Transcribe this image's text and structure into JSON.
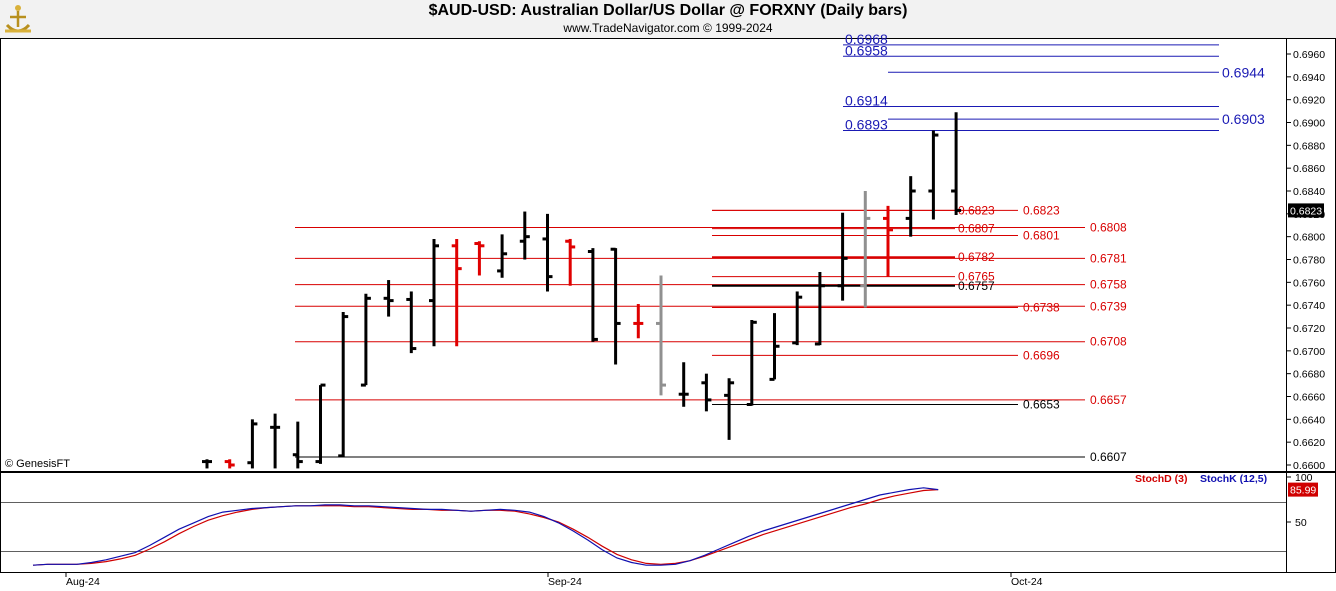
{
  "header": {
    "title": "$AUD-USD:  Australian Dollar/US Dollar @ FORXNY  (Daily bars)",
    "subtitle": "www.TradeNavigator.com © 1999-2024"
  },
  "colors": {
    "up_bar": "#000000",
    "down_bar": "#e00000",
    "gray_bar": "#909090",
    "fib_upper": "#1a1ab4",
    "fib_red": "#d80000",
    "stoch_d": "#d00000",
    "stoch_k": "#1010b0",
    "price_badge_bg": "#000000",
    "stoch_badge_bg": "#d00000"
  },
  "chart_data": [
    {
      "type": "ohlc",
      "symbol": "$AUD-USD",
      "interval": "Daily bars",
      "watermark": "© GenesisFT",
      "x_ticks": [
        "Aug-24",
        "Sep-24",
        "Oct-24"
      ],
      "y_ticks": [
        "0.6960",
        "0.6940",
        "0.6920",
        "0.6900",
        "0.6880",
        "0.6860",
        "0.6840",
        "0.6820",
        "0.6800",
        "0.6780",
        "0.6760",
        "0.6740",
        "0.6720",
        "0.6700",
        "0.6680",
        "0.6660",
        "0.6640",
        "0.6620",
        "0.6600"
      ],
      "ylim": [
        0.6597,
        0.6975
      ],
      "last_price_label": "0.6823",
      "bars": [
        {
          "o": 0.6603,
          "h": 0.6605,
          "l": 0.6597,
          "c": 0.6603,
          "col": "up"
        },
        {
          "o": 0.6603,
          "h": 0.6605,
          "l": 0.6597,
          "c": 0.66,
          "col": "down"
        },
        {
          "o": 0.6602,
          "h": 0.664,
          "l": 0.6597,
          "c": 0.6636,
          "col": "up"
        },
        {
          "o": 0.6633,
          "h": 0.6645,
          "l": 0.6597,
          "c": 0.6633,
          "col": "up"
        },
        {
          "o": 0.6609,
          "h": 0.6638,
          "l": 0.6597,
          "c": 0.6603,
          "col": "up"
        },
        {
          "o": 0.6603,
          "h": 0.667,
          "l": 0.6601,
          "c": 0.667,
          "col": "up"
        },
        {
          "o": 0.6608,
          "h": 0.6734,
          "l": 0.6607,
          "c": 0.673,
          "col": "up"
        },
        {
          "o": 0.667,
          "h": 0.675,
          "l": 0.667,
          "c": 0.6746,
          "col": "up"
        },
        {
          "o": 0.6746,
          "h": 0.6762,
          "l": 0.673,
          "c": 0.6744,
          "col": "up"
        },
        {
          "o": 0.6745,
          "h": 0.6752,
          "l": 0.6698,
          "c": 0.6702,
          "col": "up"
        },
        {
          "o": 0.6744,
          "h": 0.6798,
          "l": 0.6704,
          "c": 0.6792,
          "col": "up"
        },
        {
          "o": 0.6792,
          "h": 0.6798,
          "l": 0.6704,
          "c": 0.6772,
          "col": "down"
        },
        {
          "o": 0.6794,
          "h": 0.6796,
          "l": 0.6766,
          "c": 0.6792,
          "col": "down"
        },
        {
          "o": 0.677,
          "h": 0.6802,
          "l": 0.6764,
          "c": 0.6785,
          "col": "up"
        },
        {
          "o": 0.6796,
          "h": 0.6822,
          "l": 0.678,
          "c": 0.68,
          "col": "up"
        },
        {
          "o": 0.6798,
          "h": 0.682,
          "l": 0.6752,
          "c": 0.6765,
          "col": "up"
        },
        {
          "o": 0.6796,
          "h": 0.6798,
          "l": 0.6757,
          "c": 0.6791,
          "col": "down"
        },
        {
          "o": 0.6787,
          "h": 0.679,
          "l": 0.6708,
          "c": 0.671,
          "col": "up"
        },
        {
          "o": 0.6789,
          "h": 0.679,
          "l": 0.6688,
          "c": 0.6724,
          "col": "up"
        },
        {
          "o": 0.6724,
          "h": 0.6741,
          "l": 0.6711,
          "c": 0.6724,
          "col": "down"
        },
        {
          "o": 0.6724,
          "h": 0.6766,
          "l": 0.6661,
          "c": 0.667,
          "col": "gray"
        },
        {
          "o": 0.6662,
          "h": 0.669,
          "l": 0.6651,
          "c": 0.6662,
          "col": "up"
        },
        {
          "o": 0.6672,
          "h": 0.668,
          "l": 0.6647,
          "c": 0.6657,
          "col": "up"
        },
        {
          "o": 0.6661,
          "h": 0.6676,
          "l": 0.6622,
          "c": 0.6672,
          "col": "up"
        },
        {
          "o": 0.6653,
          "h": 0.6727,
          "l": 0.6652,
          "c": 0.6725,
          "col": "up"
        },
        {
          "o": 0.6675,
          "h": 0.6733,
          "l": 0.6675,
          "c": 0.6704,
          "col": "up"
        },
        {
          "o": 0.6707,
          "h": 0.6752,
          "l": 0.6705,
          "c": 0.6747,
          "col": "up"
        },
        {
          "o": 0.6706,
          "h": 0.6769,
          "l": 0.6705,
          "c": 0.6757,
          "col": "up"
        },
        {
          "o": 0.6757,
          "h": 0.6821,
          "l": 0.6744,
          "c": 0.6781,
          "col": "up"
        },
        {
          "o": 0.6757,
          "h": 0.684,
          "l": 0.6738,
          "c": 0.6816,
          "col": "gray"
        },
        {
          "o": 0.6816,
          "h": 0.6827,
          "l": 0.6765,
          "c": 0.6806,
          "col": "down"
        },
        {
          "o": 0.6816,
          "h": 0.6853,
          "l": 0.68,
          "c": 0.684,
          "col": "up"
        },
        {
          "o": 0.684,
          "h": 0.6893,
          "l": 0.6815,
          "c": 0.6889,
          "col": "up"
        },
        {
          "o": 0.684,
          "h": 0.6909,
          "l": 0.6819,
          "c": 0.6823,
          "col": "up"
        }
      ],
      "levels_blue": [
        {
          "value": 0.6968,
          "label": "0.6968",
          "side": "left"
        },
        {
          "value": 0.6958,
          "label": "0.6958",
          "side": "left"
        },
        {
          "value": 0.6944,
          "label": "0.6944",
          "side": "right"
        },
        {
          "value": 0.6914,
          "label": "0.6914",
          "side": "left"
        },
        {
          "value": 0.6903,
          "label": "0.6903",
          "side": "right"
        },
        {
          "value": 0.6893,
          "label": "0.6893",
          "side": "left"
        }
      ],
      "levels_red_long": [
        {
          "value": 0.6808,
          "label": "0.6808"
        },
        {
          "value": 0.6781,
          "label": "0.6781"
        },
        {
          "value": 0.6758,
          "label": "0.6758"
        },
        {
          "value": 0.6739,
          "label": "0.6739"
        },
        {
          "value": 0.6708,
          "label": "0.6708"
        },
        {
          "value": 0.6657,
          "label": "0.6657"
        }
      ],
      "levels_black_long": [
        {
          "value": 0.6607,
          "label": "0.6607"
        }
      ],
      "levels_red_mid": [
        {
          "value": 0.6823,
          "label": "0.6823"
        },
        {
          "value": 0.6801,
          "label": "0.6801"
        },
        {
          "value": 0.6738,
          "label": "0.6738"
        },
        {
          "value": 0.6696,
          "label": "0.6696"
        }
      ],
      "levels_black_mid": [
        {
          "value": 0.6653,
          "label": "0.6653"
        }
      ],
      "levels_short": [
        {
          "value": 0.6823,
          "label": "0.6823",
          "col": "red"
        },
        {
          "value": 0.6807,
          "label": "0.6807",
          "col": "red"
        },
        {
          "value": 0.6782,
          "label": "0.6782",
          "col": "red"
        },
        {
          "value": 0.6765,
          "label": "0.6765",
          "col": "red"
        },
        {
          "value": 0.6757,
          "label": "0.6757",
          "col": "black"
        }
      ]
    },
    {
      "type": "line",
      "indicator": "Stochastic",
      "y_ticks": [
        "100",
        "50"
      ],
      "ylim": [
        0,
        100
      ],
      "last_value_label": "85.99",
      "series": [
        {
          "name": "StochD (3)",
          "values": [
            2,
            3,
            3,
            3,
            4,
            6,
            9,
            13,
            20,
            28,
            37,
            45,
            52,
            57,
            61,
            64,
            66,
            67,
            68,
            68,
            68,
            68,
            67,
            67,
            66,
            65,
            64,
            64,
            63,
            63,
            62,
            63,
            63,
            62,
            59,
            55,
            50,
            42,
            33,
            23,
            14,
            8,
            4,
            3,
            4,
            7,
            12,
            18,
            24,
            30,
            36,
            41,
            46,
            51,
            56,
            61,
            66,
            70,
            75,
            79,
            82,
            85,
            86
          ]
        },
        {
          "name": "StochK (12,5)",
          "values": [
            2,
            3,
            3,
            3,
            5,
            8,
            12,
            16,
            24,
            33,
            42,
            49,
            56,
            61,
            63,
            65,
            66,
            67,
            68,
            68,
            69,
            69,
            68,
            68,
            67,
            66,
            65,
            64,
            64,
            63,
            62,
            63,
            64,
            63,
            61,
            56,
            49,
            40,
            30,
            19,
            10,
            5,
            2,
            2,
            3,
            7,
            13,
            20,
            27,
            34,
            40,
            45,
            50,
            55,
            60,
            65,
            70,
            75,
            80,
            83,
            86,
            88,
            86
          ]
        }
      ],
      "x_ticks": [
        "Aug-24",
        "Sep-24",
        "Oct-24"
      ]
    }
  ]
}
